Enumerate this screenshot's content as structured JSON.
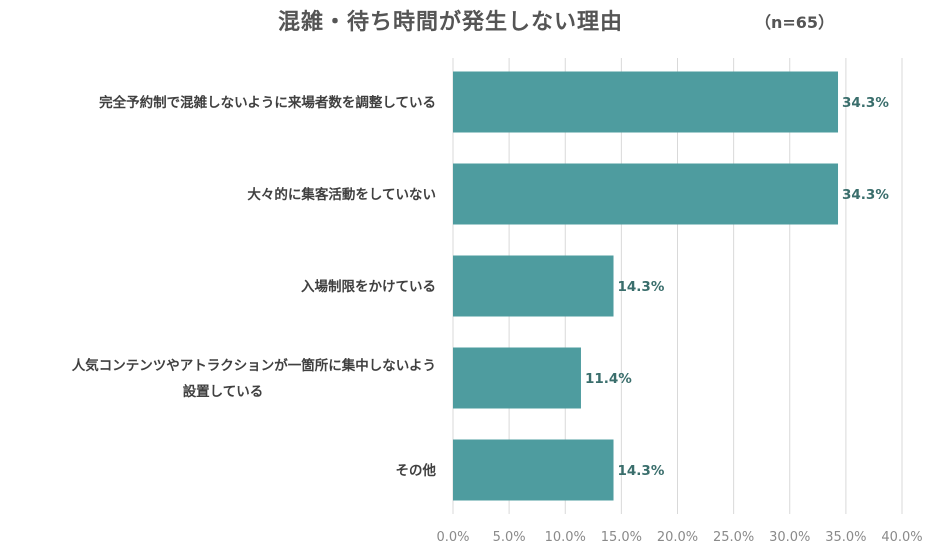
{
  "title": "混雑・待ち時間が発生しない理由",
  "sample_size": "（n=65）",
  "colors": {
    "bar": "#4e9c9f",
    "grid": "#d9d9d9",
    "value_text": "#3a6e6c"
  },
  "chart_data": {
    "type": "bar",
    "orientation": "horizontal",
    "title": "混雑・待ち時間が発生しない理由",
    "categories": [
      [
        "完全予約制で混雑しないように来場者数を調整している"
      ],
      [
        "大々的に集客活動をしていない"
      ],
      [
        "入場制限をかけている"
      ],
      [
        "人気コンテンツやアトラクションが一箇所に集中しないよう",
        "設置している"
      ],
      [
        "その他"
      ]
    ],
    "values": [
      34.3,
      34.3,
      14.3,
      11.4,
      14.3
    ],
    "value_labels": [
      "34.3%",
      "34.3%",
      "14.3%",
      "11.4%",
      "14.3%"
    ],
    "xlim": [
      0,
      40
    ],
    "x_ticks": [
      0,
      5,
      10,
      15,
      20,
      25,
      30,
      35,
      40
    ],
    "x_tick_labels": [
      "0.0%",
      "5.0%",
      "10.0%",
      "15.0%",
      "20.0%",
      "25.0%",
      "30.0%",
      "35.0%",
      "40.0%"
    ],
    "grid": true,
    "legend": "none"
  }
}
